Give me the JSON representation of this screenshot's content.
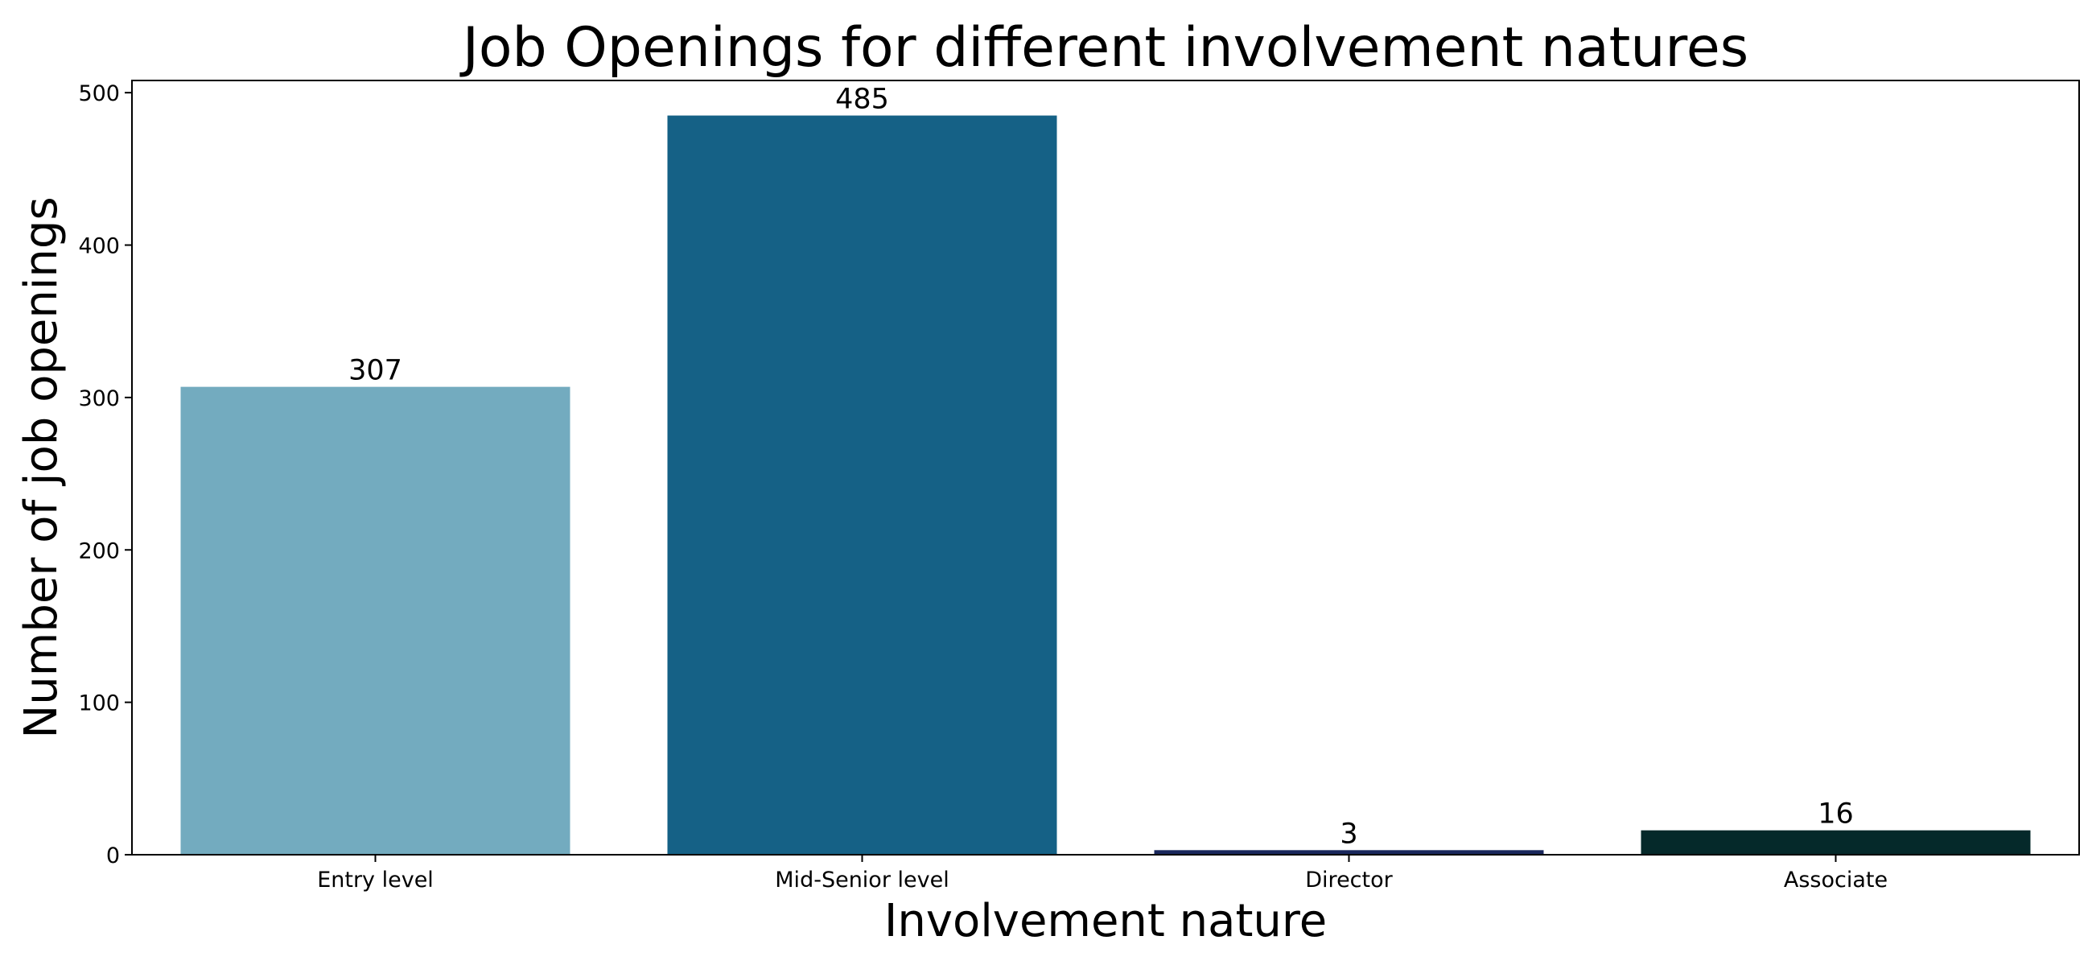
{
  "chart_data": {
    "type": "bar",
    "title": "Job Openings for different involvement natures",
    "xlabel": "Involvement nature",
    "ylabel": "Number of job openings",
    "categories": [
      "Entry level",
      "Mid-Senior level",
      "Director",
      "Associate"
    ],
    "values": [
      307,
      485,
      3,
      16
    ],
    "data_labels": [
      "307",
      "485",
      "3",
      "16"
    ],
    "colors": [
      "#73abbf",
      "#156186",
      "#19275c",
      "#05292a"
    ],
    "ylim": [
      0,
      508
    ],
    "yticks": [
      0,
      100,
      200,
      300,
      400,
      500
    ],
    "ytick_labels": [
      "0",
      "100",
      "200",
      "300",
      "400",
      "500"
    ],
    "grid": false,
    "legend": "none"
  }
}
